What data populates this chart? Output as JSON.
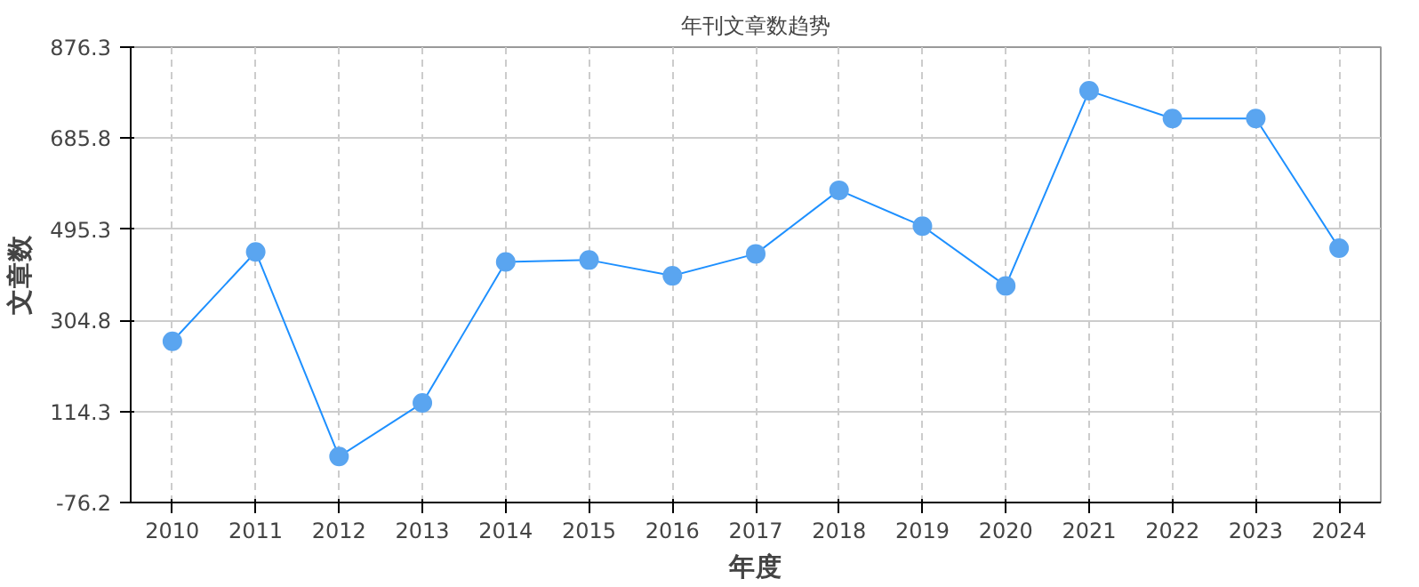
{
  "chart_data": {
    "type": "line",
    "title": "年刊文章数趋势",
    "xlabel": "年度",
    "ylabel": "文章数",
    "categories": [
      "2010",
      "2011",
      "2012",
      "2013",
      "2014",
      "2015",
      "2016",
      "2017",
      "2018",
      "2019",
      "2020",
      "2021",
      "2022",
      "2023",
      "2024"
    ],
    "series": [
      {
        "color": "#1e90ff",
        "values": [
          261,
          448,
          20,
          132,
          427,
          431,
          398,
          444,
          577,
          502,
          377,
          785,
          727,
          727,
          456
        ]
      }
    ],
    "ylim": [
      -76.2,
      876.3
    ],
    "yticks": [
      -76.2,
      114.3,
      304.8,
      495.3,
      685.8,
      876.3
    ],
    "grid": true,
    "marker": "circle",
    "line_style": "solid"
  }
}
